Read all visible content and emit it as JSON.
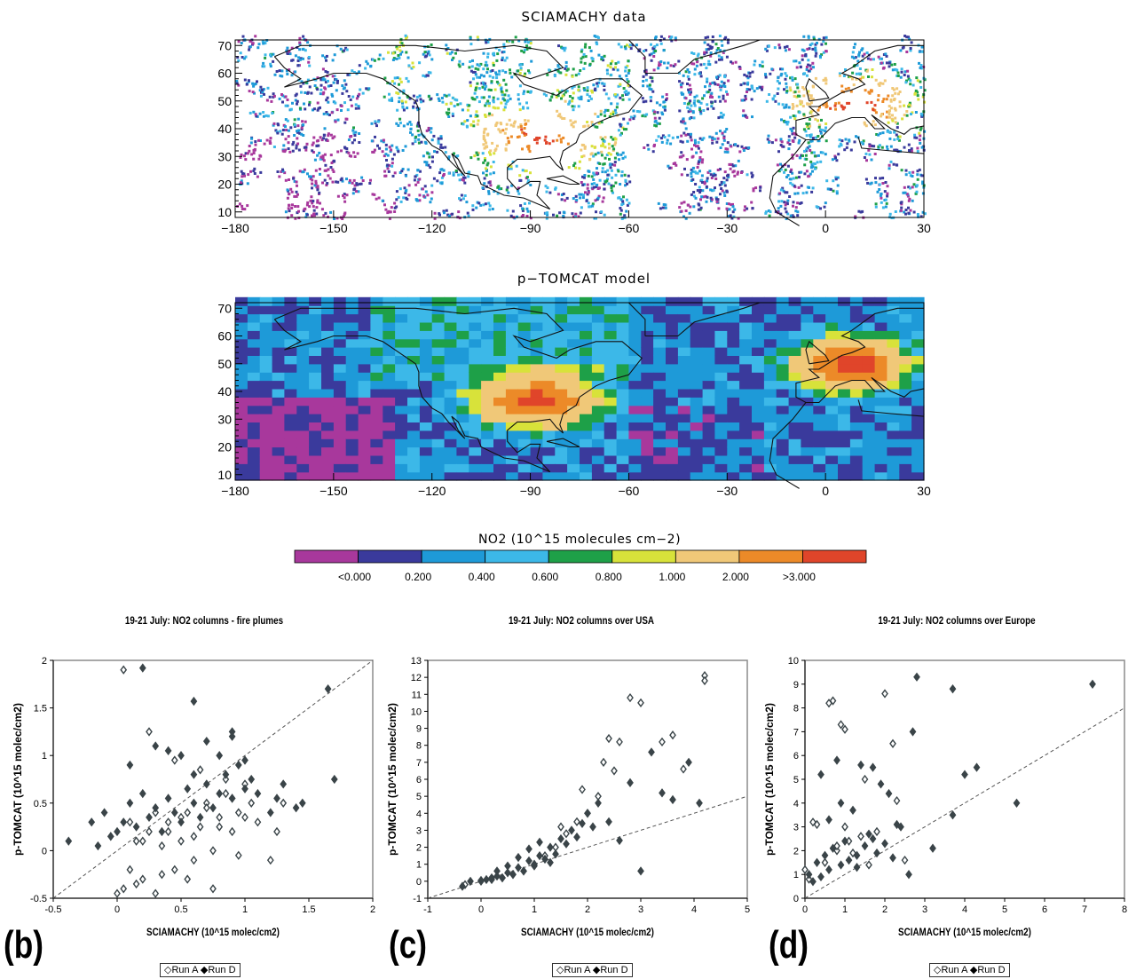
{
  "maps": [
    {
      "title": "SCIAMACHY data",
      "x_ticks": [
        -180,
        -150,
        -120,
        -90,
        -60,
        -30,
        0,
        30
      ],
      "y_ticks": [
        10,
        20,
        30,
        40,
        50,
        60,
        70
      ],
      "xlim": [
        -180,
        30
      ],
      "ylim": [
        8,
        72
      ],
      "style": "sparse"
    },
    {
      "title": "p−TOMCAT model",
      "x_ticks": [
        -180,
        -150,
        -120,
        -90,
        -60,
        -30,
        0,
        30
      ],
      "y_ticks": [
        10,
        20,
        30,
        40,
        50,
        60,
        70
      ],
      "xlim": [
        -180,
        30
      ],
      "ylim": [
        8,
        72
      ],
      "style": "full"
    }
  ],
  "colorbar": {
    "title": "NO2 (10^15 molecules cm−2)",
    "colors": [
      "#a8389c",
      "#3a3a9c",
      "#1e9ad8",
      "#3cb8e8",
      "#1ea048",
      "#d8e23a",
      "#f0c878",
      "#ec8a28",
      "#e0452a"
    ],
    "tick_labels": [
      "<0.000",
      "0.200",
      "0.400",
      "0.600",
      "0.800",
      "1.000",
      "2.000",
      ">3.000"
    ]
  },
  "chart_data": [
    {
      "type": "scatter",
      "title": "19-21 July: NO2 columns - fire plumes",
      "xlabel": "SCIAMACHY (10^15 molec/cm2)",
      "ylabel": "p-TOMCAT (10^15 molec/cm2)",
      "xlim": [
        -0.5,
        2
      ],
      "ylim": [
        -0.5,
        2
      ],
      "x_ticks": [
        "-0.5",
        "0",
        "0.5",
        "1",
        "1.5",
        "2"
      ],
      "y_ticks": [
        "-0.5",
        "0",
        "0.5",
        "1",
        "1.5",
        "2"
      ],
      "reference_line": "1:1",
      "panel_label": "(b)",
      "legend": [
        "Run A",
        "Run D"
      ],
      "series": [
        {
          "name": "Run A",
          "marker": "open-diamond",
          "x": [
            0.0,
            0.05,
            0.1,
            0.15,
            0.2,
            0.25,
            0.3,
            0.35,
            0.4,
            0.45,
            0.5,
            0.55,
            0.6,
            0.65,
            0.7,
            0.75,
            0.8,
            0.85,
            0.9,
            0.95,
            1.0,
            1.05,
            1.1,
            1.2,
            1.25,
            1.3,
            0.1,
            0.2,
            0.3,
            0.4,
            0.5,
            0.6,
            0.7,
            0.8,
            0.9,
            1.0,
            0.15,
            0.35,
            0.55,
            0.75,
            0.95,
            0.05,
            0.25,
            0.45,
            0.65,
            0.85
          ],
          "y": [
            -0.45,
            -0.4,
            -0.2,
            0.1,
            -0.3,
            0.2,
            -0.45,
            0.05,
            0.3,
            -0.2,
            0.1,
            0.4,
            -0.1,
            0.25,
            0.5,
            0.0,
            0.35,
            0.6,
            0.2,
            0.4,
            0.7,
            0.5,
            0.3,
            -0.1,
            0.2,
            0.5,
            0.3,
            0.1,
            0.4,
            0.2,
            0.35,
            0.15,
            0.45,
            0.25,
            0.55,
            0.35,
            -0.35,
            -0.25,
            -0.3,
            -0.4,
            -0.05,
            1.9,
            1.25,
            0.95,
            0.85,
            0.75
          ]
        },
        {
          "name": "Run D",
          "marker": "filled-diamond",
          "x": [
            -0.38,
            -0.2,
            -0.15,
            -0.1,
            -0.05,
            0.0,
            0.05,
            0.1,
            0.15,
            0.2,
            0.25,
            0.3,
            0.35,
            0.4,
            0.45,
            0.5,
            0.55,
            0.6,
            0.65,
            0.7,
            0.75,
            0.8,
            0.85,
            0.9,
            0.95,
            1.0,
            1.05,
            1.1,
            1.2,
            1.25,
            1.3,
            1.4,
            1.45,
            1.65,
            1.7,
            0.1,
            0.3,
            0.5,
            0.7,
            0.9,
            0.2,
            0.4,
            0.6,
            0.8,
            1.0,
            0.6,
            0.9
          ],
          "y": [
            0.1,
            0.3,
            0.05,
            0.4,
            0.15,
            0.2,
            0.3,
            0.5,
            0.25,
            0.6,
            0.35,
            0.45,
            0.2,
            0.55,
            0.4,
            0.3,
            0.65,
            0.5,
            0.35,
            0.7,
            0.45,
            0.6,
            0.8,
            0.55,
            0.9,
            0.65,
            0.75,
            0.6,
            0.4,
            0.55,
            0.7,
            0.45,
            0.5,
            1.7,
            0.75,
            0.9,
            1.1,
            1.0,
            1.15,
            1.25,
            1.92,
            1.05,
            1.57,
            1.0,
            0.95,
            0.8,
            1.2
          ]
        }
      ]
    },
    {
      "type": "scatter",
      "title": "19-21 July: NO2 columns over USA",
      "xlabel": "SCIAMACHY (10^15 molec/cm2)",
      "ylabel": "p-TOMCAT (10^15 molec/cm2)",
      "xlim": [
        -1,
        5
      ],
      "ylim": [
        -1,
        13
      ],
      "x_ticks": [
        "-1",
        "0",
        "1",
        "2",
        "3",
        "4",
        "5"
      ],
      "y_ticks": [
        "-1",
        "0",
        "1",
        "2",
        "3",
        "4",
        "5",
        "6",
        "7",
        "8",
        "9",
        "10",
        "11",
        "12",
        "13"
      ],
      "reference_line": "1:1",
      "panel_label": "(c)",
      "legend": [
        "Run A",
        "Run D"
      ],
      "series": [
        {
          "name": "Run A",
          "marker": "open-diamond",
          "x": [
            -0.3,
            0.0,
            0.2,
            0.4,
            0.6,
            0.8,
            1.0,
            1.2,
            1.4,
            1.6,
            1.8,
            2.0,
            2.2,
            2.4,
            2.5,
            2.6,
            2.8,
            3.0,
            3.4,
            3.6,
            3.8,
            4.2,
            4.2,
            1.5,
            1.9,
            2.3
          ],
          "y": [
            -0.2,
            0.0,
            0.1,
            0.2,
            0.4,
            0.6,
            0.9,
            1.5,
            2.0,
            2.8,
            3.5,
            4.0,
            5.0,
            8.4,
            6.5,
            8.2,
            10.8,
            10.5,
            8.2,
            8.6,
            6.6,
            12.1,
            11.8,
            3.2,
            5.4,
            7.0
          ]
        },
        {
          "name": "Run D",
          "marker": "filled-diamond",
          "x": [
            -0.35,
            -0.2,
            0.0,
            0.1,
            0.2,
            0.3,
            0.4,
            0.5,
            0.6,
            0.7,
            0.8,
            0.9,
            1.0,
            1.1,
            1.2,
            1.3,
            1.4,
            1.5,
            1.6,
            1.7,
            1.8,
            1.9,
            2.0,
            2.1,
            2.2,
            2.4,
            2.6,
            2.8,
            3.0,
            3.2,
            3.4,
            3.6,
            3.9,
            4.1,
            0.3,
            0.5,
            0.7,
            0.9,
            1.1,
            1.3
          ],
          "y": [
            -0.3,
            0.0,
            0.05,
            0.1,
            0.2,
            0.3,
            0.2,
            0.5,
            0.4,
            0.8,
            0.6,
            1.2,
            1.0,
            1.5,
            1.3,
            2.0,
            1.6,
            2.5,
            2.2,
            3.0,
            2.6,
            3.4,
            4.0,
            3.2,
            4.6,
            3.5,
            2.4,
            5.8,
            0.6,
            7.6,
            5.2,
            4.8,
            7.0,
            4.6,
            0.6,
            0.9,
            1.4,
            1.9,
            2.3,
            1.1
          ]
        }
      ]
    },
    {
      "type": "scatter",
      "title": "19-21 July: NO2 columns over Europe",
      "xlabel": "SCIAMACHY (10^15 molec/cm2)",
      "ylabel": "p-TOMCAT (10^15 molec/cm2)",
      "xlim": [
        0,
        8
      ],
      "ylim": [
        0,
        10
      ],
      "x_ticks": [
        "0",
        "1",
        "2",
        "3",
        "4",
        "5",
        "6",
        "7",
        "8"
      ],
      "y_ticks": [
        "0",
        "1",
        "2",
        "3",
        "4",
        "5",
        "6",
        "7",
        "8",
        "9",
        "10"
      ],
      "reference_line": "1:1",
      "panel_label": "(d)",
      "legend": [
        "Run A",
        "Run D"
      ],
      "series": [
        {
          "name": "Run A",
          "marker": "open-diamond",
          "x": [
            0.0,
            0.1,
            0.3,
            0.5,
            0.7,
            0.8,
            0.9,
            1.0,
            1.1,
            1.2,
            1.4,
            1.6,
            1.8,
            2.0,
            2.2,
            2.5,
            0.6,
            1.0,
            1.5,
            2.3,
            0.2,
            0.8
          ],
          "y": [
            1.2,
            0.8,
            3.1,
            1.5,
            8.3,
            2.0,
            7.3,
            3.0,
            2.4,
            1.9,
            2.6,
            1.4,
            2.8,
            8.6,
            6.5,
            1.6,
            8.2,
            7.1,
            5.0,
            4.1,
            3.2,
            2.2
          ]
        },
        {
          "name": "Run D",
          "marker": "filled-diamond",
          "x": [
            -0.05,
            0.1,
            0.2,
            0.3,
            0.4,
            0.5,
            0.6,
            0.7,
            0.8,
            0.9,
            1.0,
            1.1,
            1.2,
            1.3,
            1.4,
            1.5,
            1.6,
            1.7,
            1.8,
            1.9,
            2.0,
            2.1,
            2.2,
            2.3,
            2.4,
            2.6,
            2.7,
            2.8,
            3.2,
            3.7,
            3.7,
            4.0,
            4.3,
            5.3,
            7.2,
            0.4,
            0.6,
            0.9,
            1.3,
            1.7
          ],
          "y": [
            8.8,
            1.0,
            0.7,
            1.5,
            0.9,
            1.8,
            1.2,
            2.1,
            5.8,
            1.4,
            2.4,
            1.6,
            3.7,
            1.8,
            5.6,
            2.2,
            2.7,
            5.5,
            1.9,
            4.8,
            2.3,
            4.4,
            1.7,
            3.1,
            3.0,
            1.0,
            7.0,
            9.3,
            2.1,
            8.8,
            3.5,
            5.2,
            5.5,
            4.0,
            9.0,
            5.2,
            3.3,
            4.0,
            1.3,
            2.5
          ]
        }
      ]
    }
  ]
}
